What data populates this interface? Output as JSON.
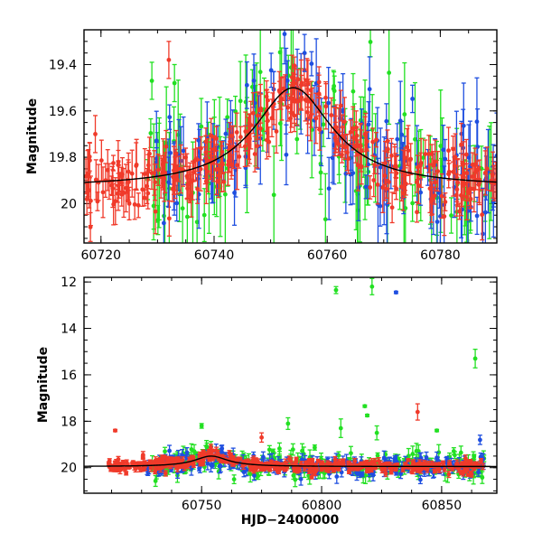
{
  "colors": {
    "green": "#22e022",
    "blue": "#1f4fe0",
    "red": "#f03a2a",
    "model": "#000000"
  },
  "chart_data": [
    {
      "type": "scatter",
      "title": "",
      "xlabel": "",
      "ylabel": "Magnitude",
      "xlim": [
        60717,
        60790
      ],
      "ylim": [
        20.17,
        19.25
      ],
      "y_inverted": true,
      "xticks": [
        60720,
        60740,
        60760,
        60780
      ],
      "xtick_labels": [
        "60720",
        "60740",
        "60760",
        "60780"
      ],
      "yticks": [
        19.4,
        19.6,
        19.8,
        20.0
      ],
      "ytick_labels": [
        "19.4",
        "19.6",
        "19.8",
        "20"
      ],
      "model": {
        "type": "microlensing-peak",
        "t0": 60754,
        "baseline": 19.93,
        "peak": 19.5,
        "width": 8.5
      },
      "series": [
        {
          "color": "green",
          "n": 120,
          "xrange": [
            60728,
            60790
          ],
          "error": [
            0.06,
            0.25
          ],
          "scatter": 0.14
        },
        {
          "color": "blue",
          "n": 130,
          "xrange": [
            60729,
            60790
          ],
          "error": [
            0.05,
            0.2
          ],
          "scatter": 0.11
        },
        {
          "color": "red",
          "n": 330,
          "xrange": [
            60717,
            60790
          ],
          "error": [
            0.03,
            0.11
          ],
          "scatter": 0.06
        }
      ],
      "outliers": [
        {
          "color": "red",
          "x": 60732,
          "y": 19.38
        },
        {
          "color": "red",
          "x": 60719,
          "y": 19.7
        },
        {
          "color": "green",
          "x": 60733,
          "y": 19.48
        },
        {
          "color": "green",
          "x": 60729,
          "y": 19.47
        },
        {
          "color": "blue",
          "x": 60756,
          "y": 19.35
        }
      ]
    },
    {
      "type": "scatter",
      "title": "",
      "xlabel": "HJD−2400000",
      "ylabel": "Magnitude",
      "xlim": [
        60701,
        60873
      ],
      "ylim": [
        21.1,
        11.8
      ],
      "y_inverted": true,
      "xticks": [
        60750,
        60800,
        60850
      ],
      "xtick_labels": [
        "60750",
        "60800",
        "60850"
      ],
      "yticks": [
        12,
        14,
        16,
        18,
        20
      ],
      "ytick_labels": [
        "12",
        "14",
        "16",
        "18",
        "20"
      ],
      "model": {
        "type": "microlensing-peak",
        "t0": 60754,
        "baseline": 19.95,
        "peak": 19.5,
        "width": 8.5
      },
      "series": [
        {
          "color": "green",
          "n": 230,
          "xrange": [
            60727,
            60868
          ],
          "error": [
            0.1,
            0.35
          ],
          "scatter": 0.32
        },
        {
          "color": "blue",
          "n": 200,
          "xrange": [
            60727,
            60868
          ],
          "error": [
            0.1,
            0.3
          ],
          "scatter": 0.22
        },
        {
          "color": "red",
          "n": 420,
          "xrange": [
            60711,
            60868
          ],
          "error": [
            0.05,
            0.15
          ],
          "scatter": 0.14
        }
      ],
      "outliers": [
        {
          "color": "green",
          "x": 60806,
          "y": 12.35,
          "err": 0.15
        },
        {
          "color": "green",
          "x": 60821,
          "y": 12.2,
          "err": 0.35
        },
        {
          "color": "blue",
          "x": 60831,
          "y": 12.45,
          "err": 0.05
        },
        {
          "color": "green",
          "x": 60864,
          "y": 15.3,
          "err": 0.4
        },
        {
          "color": "red",
          "x": 60714,
          "y": 18.4,
          "err": 0.05
        },
        {
          "color": "red",
          "x": 60840,
          "y": 17.6,
          "err": 0.35
        },
        {
          "color": "green",
          "x": 60818,
          "y": 17.35,
          "err": 0.05
        },
        {
          "color": "green",
          "x": 60819,
          "y": 17.75,
          "err": 0.05
        },
        {
          "color": "green",
          "x": 60750,
          "y": 18.2,
          "err": 0.1
        },
        {
          "color": "green",
          "x": 60786,
          "y": 18.1,
          "err": 0.25
        },
        {
          "color": "green",
          "x": 60808,
          "y": 18.3,
          "err": 0.4
        },
        {
          "color": "green",
          "x": 60823,
          "y": 18.5,
          "err": 0.3
        },
        {
          "color": "green",
          "x": 60848,
          "y": 18.4,
          "err": 0.05
        },
        {
          "color": "blue",
          "x": 60866,
          "y": 18.8,
          "err": 0.2
        },
        {
          "color": "red",
          "x": 60775,
          "y": 18.7,
          "err": 0.2
        }
      ]
    }
  ]
}
